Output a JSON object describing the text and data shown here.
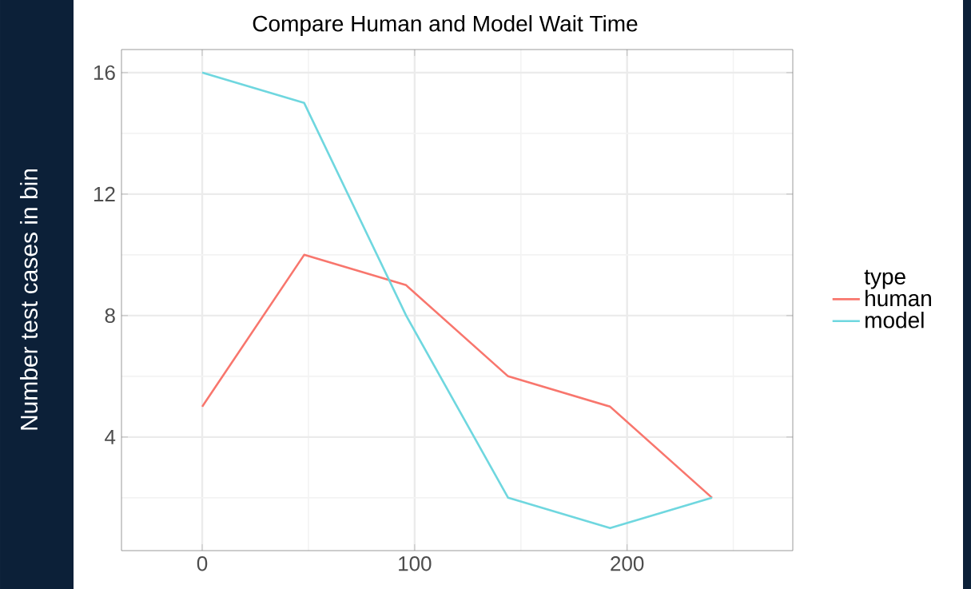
{
  "chart_data": {
    "type": "line",
    "title": "Compare Human and Model Wait Time",
    "ylabel": "Number test cases in bin",
    "legend_title": "type",
    "x": [
      0,
      48,
      96,
      144,
      192,
      240
    ],
    "series": [
      {
        "name": "human",
        "color": "#f8766d",
        "values": [
          5,
          10,
          9,
          6,
          5,
          2
        ]
      },
      {
        "name": "model",
        "color": "#6fd7df",
        "values": [
          16,
          15,
          8,
          2,
          1,
          2
        ]
      }
    ],
    "xlim": [
      -38,
      278
    ],
    "ylim": [
      0.26,
      16.76
    ],
    "xticks": [
      0,
      100,
      200
    ],
    "yticks": [
      4,
      8,
      12,
      16
    ],
    "grid": true,
    "legend": "right",
    "marker": "none",
    "line_style": "solid"
  }
}
